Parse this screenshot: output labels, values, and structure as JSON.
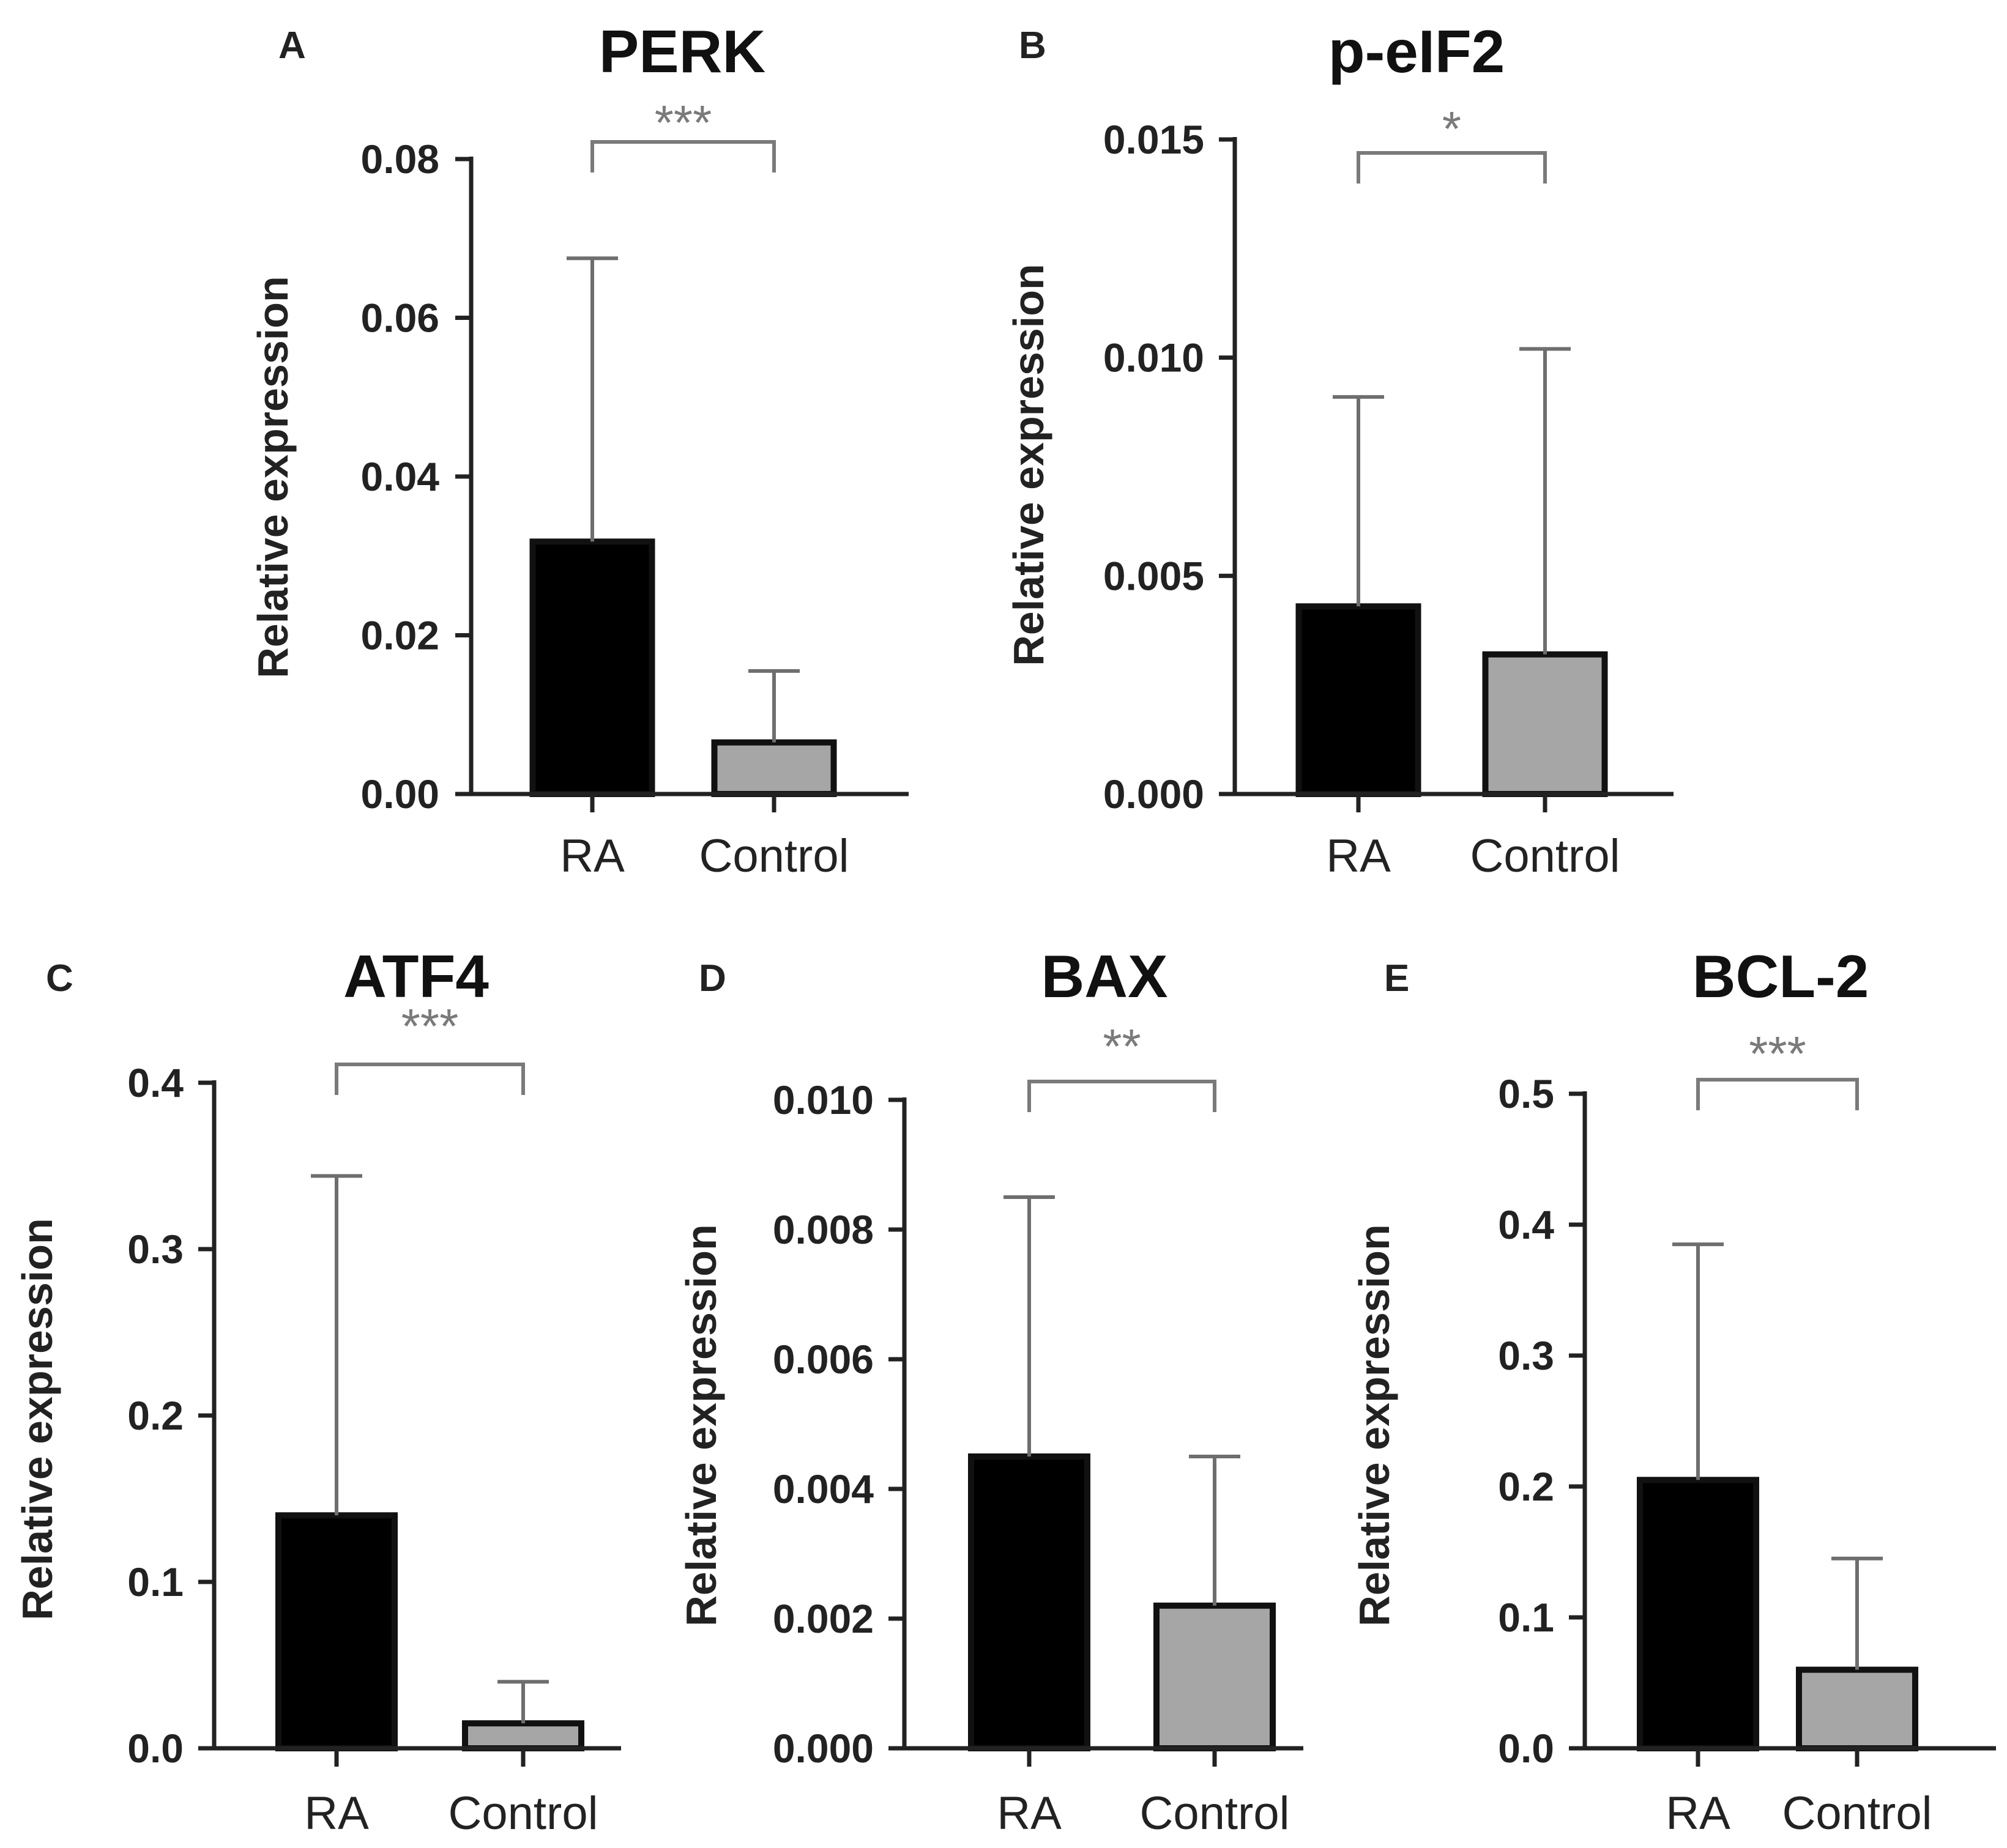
{
  "chart_data": [
    {
      "panel": "A",
      "type": "bar",
      "title": "PERK",
      "ylabel": "Relative expression",
      "categories": [
        "RA",
        "Control"
      ],
      "values": [
        0.0318,
        0.0065
      ],
      "errors": [
        0.0357,
        0.009
      ],
      "ylim": [
        0,
        0.08
      ],
      "yticks": [
        "0.00",
        "0.02",
        "0.04",
        "0.06",
        "0.08"
      ],
      "significance": "***",
      "colors": [
        "#000000",
        "#a6a6a6"
      ]
    },
    {
      "panel": "B",
      "type": "bar",
      "title": "p-eIF2",
      "ylabel": "Relative expression",
      "categories": [
        "RA",
        "Control"
      ],
      "values": [
        0.0043,
        0.0032
      ],
      "errors": [
        0.0048,
        0.007
      ],
      "ylim": [
        0,
        0.015
      ],
      "yticks": [
        "0.000",
        "0.005",
        "0.010",
        "0.015"
      ],
      "significance": "*",
      "colors": [
        "#000000",
        "#a6a6a6"
      ]
    },
    {
      "panel": "C",
      "type": "bar",
      "title": "ATF4",
      "ylabel": "Relative expression",
      "categories": [
        "RA",
        "Control"
      ],
      "values": [
        0.14,
        0.015
      ],
      "errors": [
        0.204,
        0.025
      ],
      "ylim": [
        0,
        0.4
      ],
      "yticks": [
        "0.0",
        "0.1",
        "0.2",
        "0.3",
        "0.4"
      ],
      "significance": "***",
      "colors": [
        "#000000",
        "#a6a6a6"
      ]
    },
    {
      "panel": "D",
      "type": "bar",
      "title": "BAX",
      "ylabel": "Relative expression",
      "categories": [
        "RA",
        "Control"
      ],
      "values": [
        0.0045,
        0.0022
      ],
      "errors": [
        0.004,
        0.0023
      ],
      "ylim": [
        0,
        0.01
      ],
      "yticks": [
        "0.000",
        "0.002",
        "0.004",
        "0.006",
        "0.008",
        "0.010"
      ],
      "significance": "**",
      "colors": [
        "#000000",
        "#a6a6a6"
      ]
    },
    {
      "panel": "E",
      "type": "bar",
      "title": "BCL-2",
      "ylabel": "Relative expression",
      "categories": [
        "RA",
        "Control"
      ],
      "values": [
        0.205,
        0.06
      ],
      "errors": [
        0.18,
        0.085
      ],
      "ylim": [
        0,
        0.5
      ],
      "yticks": [
        "0.0",
        "0.1",
        "0.2",
        "0.3",
        "0.4",
        "0.5"
      ],
      "significance": "***",
      "colors": [
        "#000000",
        "#a6a6a6"
      ]
    }
  ]
}
